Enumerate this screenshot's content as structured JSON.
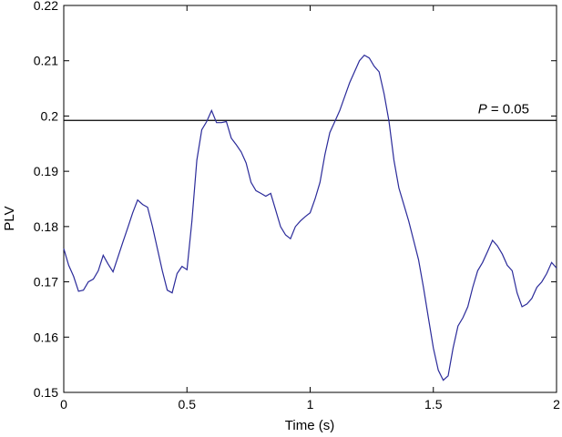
{
  "chart_data": {
    "type": "line",
    "xlabel": "Time (s)",
    "ylabel": "PLV",
    "xlim": [
      0,
      2
    ],
    "ylim": [
      0.15,
      0.22
    ],
    "xticks": [
      "0",
      "0.5",
      "1",
      "1.5",
      "2"
    ],
    "yticks": [
      "0.15",
      "0.16",
      "0.17",
      "0.18",
      "0.19",
      "0.2",
      "0.21",
      "0.22"
    ],
    "grid": false,
    "line_color": "#2b2b9a",
    "threshold": {
      "value": 0.1992,
      "label_italic": "P",
      "label_rest": " = 0.05",
      "color": "#000000"
    },
    "series": [
      {
        "x": [
          0.0,
          0.02,
          0.04,
          0.06,
          0.08,
          0.1,
          0.12,
          0.14,
          0.16,
          0.18,
          0.2,
          0.22,
          0.24,
          0.26,
          0.28,
          0.3,
          0.32,
          0.34,
          0.36,
          0.38,
          0.4,
          0.42,
          0.44,
          0.46,
          0.48,
          0.5,
          0.52,
          0.54,
          0.56,
          0.58,
          0.6,
          0.62,
          0.64,
          0.66,
          0.68,
          0.7,
          0.72,
          0.74,
          0.76,
          0.78,
          0.8,
          0.82,
          0.84,
          0.86,
          0.88,
          0.9,
          0.92,
          0.94,
          0.96,
          0.98,
          1.0,
          1.02,
          1.04,
          1.06,
          1.08,
          1.1,
          1.12,
          1.14,
          1.16,
          1.18,
          1.2,
          1.22,
          1.24,
          1.26,
          1.28,
          1.3,
          1.32,
          1.34,
          1.36,
          1.38,
          1.4,
          1.42,
          1.44,
          1.46,
          1.48,
          1.5,
          1.52,
          1.54,
          1.56,
          1.58,
          1.6,
          1.62,
          1.64,
          1.66,
          1.68,
          1.7,
          1.72,
          1.74,
          1.76,
          1.78,
          1.8,
          1.82,
          1.84,
          1.86,
          1.88,
          1.9,
          1.92,
          1.94,
          1.96,
          1.98,
          2.0
        ],
        "values": [
          0.176,
          0.173,
          0.171,
          0.1683,
          0.1685,
          0.17,
          0.1705,
          0.172,
          0.1748,
          0.1732,
          0.1718,
          0.1745,
          0.1772,
          0.1798,
          0.1825,
          0.1848,
          0.184,
          0.1835,
          0.18,
          0.176,
          0.172,
          0.1685,
          0.168,
          0.1715,
          0.1728,
          0.1722,
          0.181,
          0.192,
          0.1975,
          0.199,
          0.201,
          0.1988,
          0.1988,
          0.199,
          0.196,
          0.1948,
          0.1935,
          0.1915,
          0.188,
          0.1865,
          0.186,
          0.1855,
          0.186,
          0.183,
          0.18,
          0.1785,
          0.1778,
          0.18,
          0.181,
          0.1818,
          0.1825,
          0.185,
          0.188,
          0.193,
          0.197,
          0.199,
          0.201,
          0.2035,
          0.206,
          0.208,
          0.21,
          0.211,
          0.2105,
          0.209,
          0.208,
          0.204,
          0.199,
          0.192,
          0.187,
          0.184,
          0.181,
          0.1775,
          0.174,
          0.169,
          0.1635,
          0.158,
          0.154,
          0.1522,
          0.153,
          0.158,
          0.162,
          0.1635,
          0.1655,
          0.169,
          0.172,
          0.1735,
          0.1755,
          0.1775,
          0.1765,
          0.175,
          0.173,
          0.172,
          0.168,
          0.1655,
          0.166,
          0.167,
          0.169,
          0.17,
          0.1715,
          0.1735,
          0.1725
        ]
      }
    ]
  }
}
